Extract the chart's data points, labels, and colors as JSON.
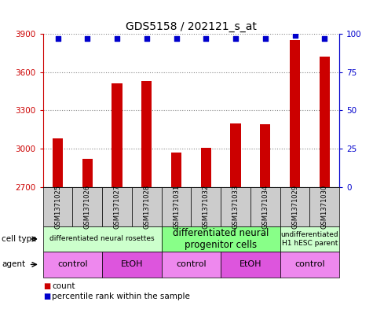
{
  "title": "GDS5158 / 202121_s_at",
  "samples": [
    "GSM1371025",
    "GSM1371026",
    "GSM1371027",
    "GSM1371028",
    "GSM1371031",
    "GSM1371032",
    "GSM1371033",
    "GSM1371034",
    "GSM1371029",
    "GSM1371030"
  ],
  "counts": [
    3080,
    2920,
    3510,
    3530,
    2970,
    3010,
    3200,
    3190,
    3850,
    3720
  ],
  "percentiles": [
    97,
    97,
    97,
    97,
    97,
    97,
    97,
    97,
    99,
    97
  ],
  "ylim_left": [
    2700,
    3900
  ],
  "ylim_right": [
    0,
    100
  ],
  "yticks_left": [
    2700,
    3000,
    3300,
    3600,
    3900
  ],
  "yticks_right": [
    0,
    25,
    50,
    75,
    100
  ],
  "bar_color": "#cc0000",
  "dot_color": "#0000cc",
  "cell_type_groups": [
    {
      "label": "differentiated neural rosettes",
      "start": 0,
      "end": 4,
      "color": "#ccffcc",
      "fontsize": 6.5
    },
    {
      "label": "differentiated neural\nprogenitor cells",
      "start": 4,
      "end": 8,
      "color": "#88ff88",
      "fontsize": 8.5
    },
    {
      "label": "undifferentiated\nH1 hESC parent",
      "start": 8,
      "end": 10,
      "color": "#ccffcc",
      "fontsize": 6.5
    }
  ],
  "agent_groups": [
    {
      "label": "control",
      "start": 0,
      "end": 2,
      "color": "#ee88ee"
    },
    {
      "label": "EtOH",
      "start": 2,
      "end": 4,
      "color": "#dd55dd"
    },
    {
      "label": "control",
      "start": 4,
      "end": 6,
      "color": "#ee88ee"
    },
    {
      "label": "EtOH",
      "start": 6,
      "end": 8,
      "color": "#dd55dd"
    },
    {
      "label": "control",
      "start": 8,
      "end": 10,
      "color": "#ee88ee"
    }
  ],
  "row_labels": [
    "cell type",
    "agent"
  ],
  "legend_count_color": "#cc0000",
  "legend_dot_color": "#0000cc",
  "grid_color": "#888888",
  "left_axis_color": "#cc0000",
  "right_axis_color": "#0000cc",
  "label_bg_color": "#cccccc",
  "bar_width": 0.35,
  "tick_fontsize": 7.5
}
